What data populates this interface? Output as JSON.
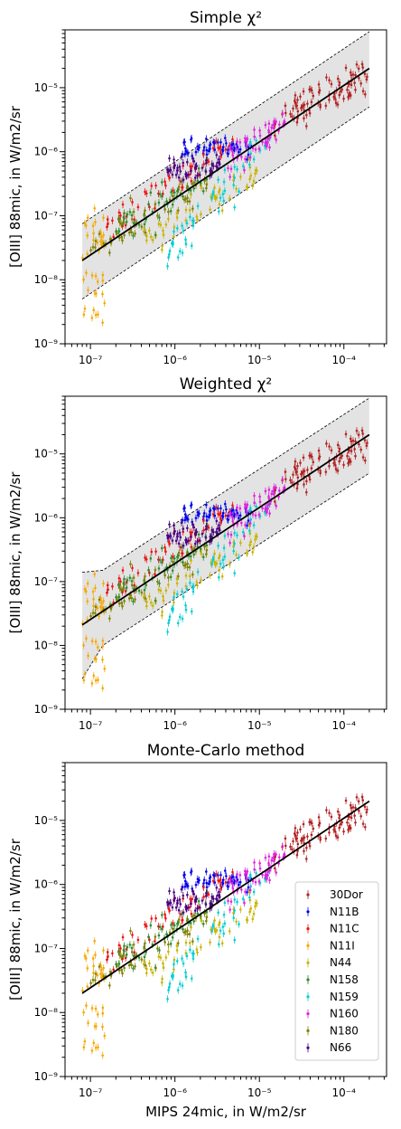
{
  "chart_data": [
    {
      "type": "scatter",
      "title": "Simple χ²",
      "xlabel": "",
      "ylabel": "[OIII] 88mic, in W/m2/sr",
      "x_scale": "log",
      "y_scale": "log",
      "xlim": [
        5e-08,
        0.00032
      ],
      "ylim": [
        1e-09,
        8e-05
      ],
      "x_tick_labels": [
        "10⁻⁷",
        "10⁻⁶",
        "10⁻⁵",
        "10⁻⁴"
      ],
      "y_tick_labels": [
        "10⁻⁹",
        "10⁻⁸",
        "10⁻⁷",
        "10⁻⁶",
        "10⁻⁵"
      ],
      "fit_line": {
        "x": [
          8e-08,
          0.0002
        ],
        "y": [
          2e-08,
          2e-05
        ]
      },
      "band_upper": {
        "x": [
          8e-08,
          0.0002
        ],
        "y": [
          7.5e-08,
          7.5e-05
        ]
      },
      "band_lower": {
        "x": [
          8e-08,
          0.0002
        ],
        "y": [
          5e-09,
          5e-06
        ]
      },
      "legend": false
    },
    {
      "type": "scatter",
      "title": "Weighted χ²",
      "xlabel": "",
      "ylabel": "[OIII] 88mic, in W/m2/sr",
      "x_scale": "log",
      "y_scale": "log",
      "xlim": [
        5e-08,
        0.00032
      ],
      "ylim": [
        1e-09,
        8e-05
      ],
      "x_tick_labels": [
        "10⁻⁷",
        "10⁻⁶",
        "10⁻⁵",
        "10⁻⁴"
      ],
      "y_tick_labels": [
        "10⁻⁹",
        "10⁻⁸",
        "10⁻⁷",
        "10⁻⁶",
        "10⁻⁵"
      ],
      "fit_line": {
        "x": [
          8e-08,
          0.0002
        ],
        "y": [
          2.1e-08,
          2e-05
        ]
      },
      "band_upper": {
        "x": [
          8e-08,
          1.4e-07,
          0.0002
        ],
        "y": [
          1.4e-07,
          1.5e-07,
          7.5e-05
        ]
      },
      "band_lower": {
        "x": [
          8e-08,
          1.4e-07,
          0.0002
        ],
        "y": [
          3e-09,
          1e-08,
          5e-06
        ]
      },
      "legend": false
    },
    {
      "type": "scatter",
      "title": "Monte-Carlo method",
      "xlabel": "MIPS 24mic, in W/m2/sr",
      "ylabel": "[OIII] 88mic, in W/m2/sr",
      "x_scale": "log",
      "y_scale": "log",
      "xlim": [
        5e-08,
        0.00032
      ],
      "ylim": [
        1e-09,
        8e-05
      ],
      "x_tick_labels": [
        "10⁻⁷",
        "10⁻⁶",
        "10⁻⁵",
        "10⁻⁴"
      ],
      "y_tick_labels": [
        "10⁻⁹",
        "10⁻⁸",
        "10⁻⁷",
        "10⁻⁶",
        "10⁻⁵"
      ],
      "fit_line": {
        "x": [
          8e-08,
          0.0002
        ],
        "y": [
          2e-08,
          2e-05
        ]
      },
      "legend": true,
      "legend_placement": "lower-right"
    }
  ],
  "series": [
    {
      "name": "30Dor",
      "color": "#b22222",
      "x_range": [
        1.5e-05,
        0.00019
      ],
      "y_range": [
        3e-06,
        1.7e-05
      ]
    },
    {
      "name": "N11B",
      "color": "#0000ee",
      "x_range": [
        1.2e-06,
        8e-06
      ],
      "y_range": [
        7e-07,
        1.5e-06
      ]
    },
    {
      "name": "N11C",
      "color": "#ee1111",
      "x_range": [
        1.5e-07,
        5e-06
      ],
      "y_range": [
        6e-08,
        1.5e-06
      ]
    },
    {
      "name": "N11I",
      "color": "#f5a800",
      "x_range": [
        8e-08,
        1.5e-07
      ],
      "y_range": [
        2e-09,
        1e-07
      ]
    },
    {
      "name": "N44",
      "color": "#c8b400",
      "x_range": [
        4e-07,
        1e-05
      ],
      "y_range": [
        4e-08,
        6e-07
      ]
    },
    {
      "name": "N158",
      "color": "#2e8b2e",
      "x_range": [
        2e-07,
        3e-06
      ],
      "y_range": [
        6e-08,
        6e-07
      ]
    },
    {
      "name": "N159",
      "color": "#00ced1",
      "x_range": [
        8e-07,
        1.5e-05
      ],
      "y_range": [
        2.5e-08,
        2e-06
      ]
    },
    {
      "name": "N160",
      "color": "#e020e0",
      "x_range": [
        4e-06,
        2e-05
      ],
      "y_range": [
        6e-07,
        3e-06
      ]
    },
    {
      "name": "N180",
      "color": "#808000",
      "x_range": [
        1e-07,
        2.5e-06
      ],
      "y_range": [
        3e-08,
        3e-07
      ]
    },
    {
      "name": "N66",
      "color": "#4b0082",
      "x_range": [
        8e-07,
        3.5e-06
      ],
      "y_range": [
        3e-07,
        8e-07
      ]
    }
  ]
}
